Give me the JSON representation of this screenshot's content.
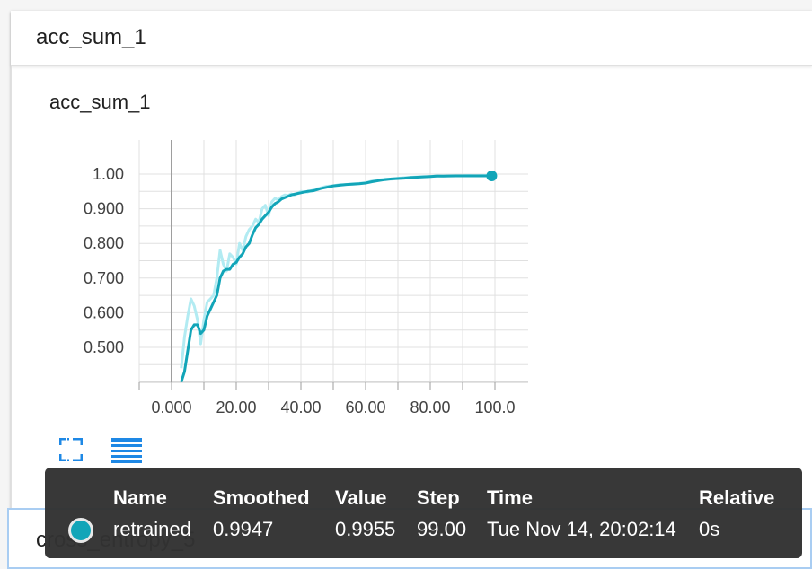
{
  "card": {
    "title": "acc_sum_1"
  },
  "chart_data": {
    "type": "line",
    "title": "acc_sum_1",
    "xlabel": "",
    "ylabel": "",
    "xlim": [
      -10,
      105
    ],
    "ylim": [
      0.4,
      1.08
    ],
    "x_ticks": [
      "0.000",
      "20.00",
      "40.00",
      "60.00",
      "80.00",
      "100.0"
    ],
    "y_ticks": [
      "1.00",
      "0.900",
      "0.800",
      "0.700",
      "0.600",
      "0.500"
    ],
    "grid": true,
    "colors": {
      "smoothed": "#12a5b8",
      "raw": "#b2ebf2"
    },
    "series": [
      {
        "name": "retrained",
        "x": [
          3,
          4,
          5,
          6,
          7,
          8,
          9,
          10,
          11,
          12,
          13,
          14,
          15,
          16,
          17,
          18,
          19,
          20,
          21,
          22,
          23,
          24,
          25,
          26,
          27,
          28,
          29,
          30,
          31,
          32,
          33,
          34,
          35,
          36,
          37,
          38,
          40,
          42,
          44,
          46,
          48,
          50,
          52,
          54,
          56,
          58,
          60,
          62,
          64,
          66,
          68,
          70,
          72,
          74,
          76,
          78,
          80,
          82,
          84,
          86,
          88,
          90,
          92,
          94,
          96,
          99
        ],
        "smoothed": [
          0.4,
          0.43,
          0.49,
          0.55,
          0.565,
          0.565,
          0.54,
          0.55,
          0.59,
          0.61,
          0.63,
          0.65,
          0.7,
          0.72,
          0.725,
          0.725,
          0.74,
          0.745,
          0.76,
          0.77,
          0.79,
          0.8,
          0.825,
          0.845,
          0.855,
          0.87,
          0.88,
          0.89,
          0.905,
          0.915,
          0.92,
          0.928,
          0.932,
          0.936,
          0.94,
          0.942,
          0.946,
          0.95,
          0.952,
          0.958,
          0.962,
          0.966,
          0.968,
          0.97,
          0.971,
          0.972,
          0.974,
          0.978,
          0.981,
          0.984,
          0.986,
          0.987,
          0.988,
          0.99,
          0.991,
          0.992,
          0.993,
          0.994,
          0.994,
          0.9945,
          0.9947,
          0.9947,
          0.9947,
          0.9947,
          0.9947,
          0.9947
        ],
        "raw": [
          0.44,
          0.53,
          0.59,
          0.64,
          0.62,
          0.58,
          0.51,
          0.58,
          0.63,
          0.64,
          0.65,
          0.7,
          0.78,
          0.74,
          0.72,
          0.77,
          0.76,
          0.74,
          0.8,
          0.78,
          0.82,
          0.84,
          0.85,
          0.87,
          0.86,
          0.9,
          0.91,
          0.88,
          0.92,
          0.93,
          0.925,
          0.935,
          0.94,
          0.938,
          0.943,
          0.94,
          0.95,
          0.948,
          0.955,
          0.96,
          0.965,
          0.966,
          0.97,
          0.97,
          0.972,
          0.973,
          0.975,
          0.98,
          0.982,
          0.986,
          0.985,
          0.988,
          0.99,
          0.991,
          0.992,
          0.993,
          0.993,
          0.995,
          0.994,
          0.995,
          0.995,
          0.995,
          0.996,
          0.995,
          0.996,
          0.9955
        ]
      }
    ]
  },
  "actions": {
    "fullscreen_icon": "fullscreen-icon",
    "data_icon": "list-data-icon"
  },
  "tooltip": {
    "headers": {
      "name": "Name",
      "smoothed": "Smoothed",
      "value": "Value",
      "step": "Step",
      "time": "Time",
      "relative": "Relative"
    },
    "row": {
      "name": "retrained",
      "smoothed": "0.9947",
      "value": "0.9955",
      "step": "99.00",
      "time": "Tue Nov 14, 20:02:14",
      "relative": "0s"
    },
    "swatch_color": "#12a5b8"
  },
  "second_card": {
    "title": "cross_entropy_5"
  }
}
